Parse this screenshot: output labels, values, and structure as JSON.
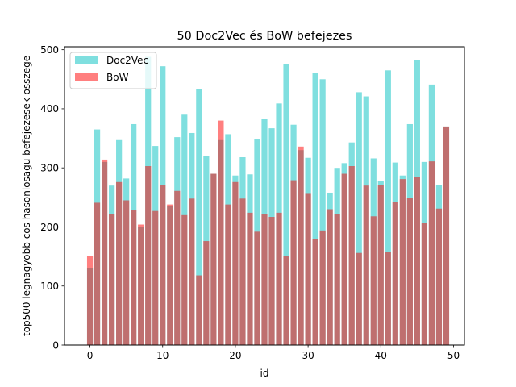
{
  "chart_data": {
    "type": "bar",
    "title": "50 Doc2Vec és BoW befejezes",
    "xlabel": "id",
    "ylabel": "top500 legnagyobb cos hasonlosagu befejezesek osszege",
    "xlim": [
      -3.5,
      51.5
    ],
    "ylim": [
      0,
      505
    ],
    "xticks": [
      0,
      10,
      20,
      30,
      40,
      50
    ],
    "yticks": [
      0,
      100,
      200,
      300,
      400,
      500
    ],
    "grid": false,
    "legend_position": "top-left",
    "x": [
      0,
      1,
      2,
      3,
      4,
      5,
      6,
      7,
      8,
      9,
      10,
      11,
      12,
      13,
      14,
      15,
      16,
      17,
      18,
      19,
      20,
      21,
      22,
      23,
      24,
      25,
      26,
      27,
      28,
      29,
      30,
      31,
      32,
      33,
      34,
      35,
      36,
      37,
      38,
      39,
      40,
      41,
      42,
      43,
      44,
      45,
      46,
      47,
      48,
      49
    ],
    "series": [
      {
        "name": "Doc2Vec",
        "color": "#00c0c0",
        "opacity": 0.5,
        "values": [
          130,
          365,
          310,
          270,
          347,
          282,
          374,
          200,
          488,
          337,
          472,
          236,
          352,
          390,
          359,
          433,
          320,
          290,
          347,
          357,
          287,
          318,
          289,
          348,
          383,
          367,
          409,
          475,
          373,
          330,
          317,
          461,
          450,
          258,
          300,
          308,
          343,
          428,
          421,
          316,
          278,
          465,
          309,
          287,
          374,
          482,
          310,
          441,
          271,
          370
        ]
      },
      {
        "name": "BoW",
        "color": "#ff0000",
        "opacity": 0.5,
        "values": [
          151,
          241,
          314,
          222,
          276,
          245,
          229,
          204,
          303,
          227,
          271,
          238,
          261,
          220,
          248,
          118,
          176,
          290,
          380,
          238,
          276,
          248,
          224,
          192,
          222,
          217,
          224,
          151,
          279,
          336,
          256,
          180,
          194,
          230,
          222,
          290,
          303,
          156,
          270,
          218,
          271,
          157,
          242,
          281,
          249,
          285,
          207,
          311,
          231,
          370
        ]
      }
    ]
  }
}
